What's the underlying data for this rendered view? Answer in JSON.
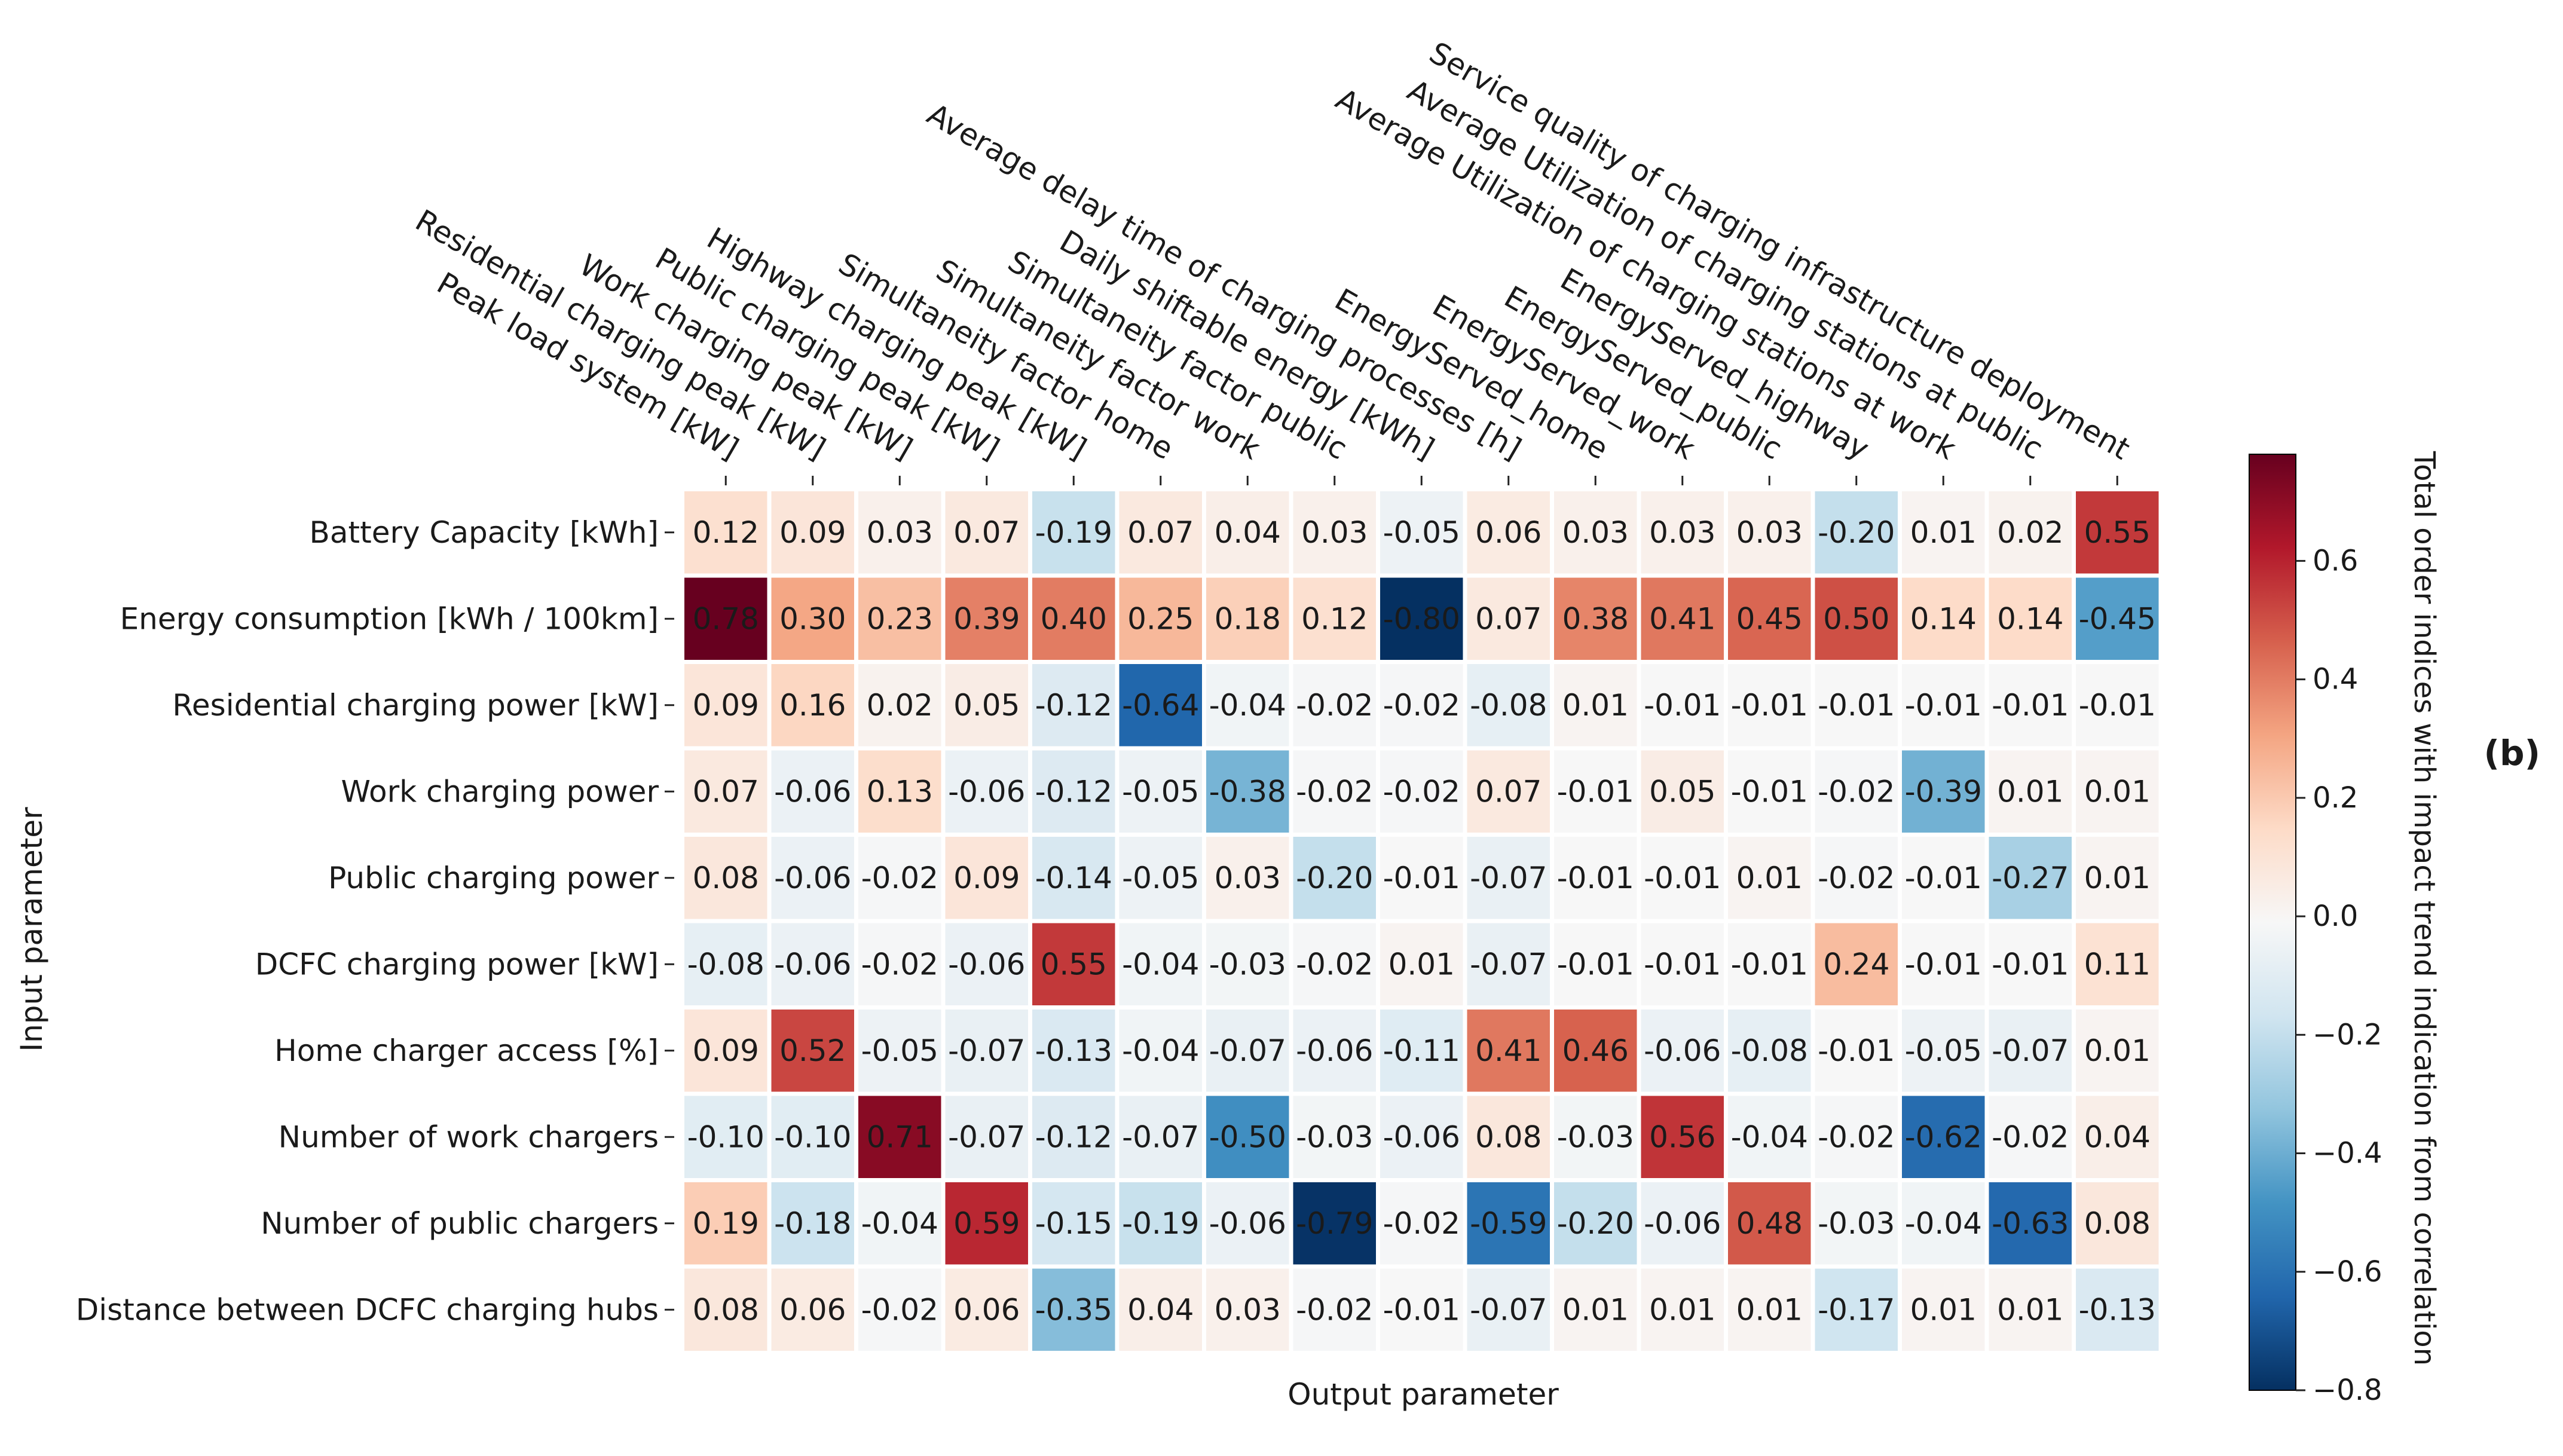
{
  "chart_data": {
    "type": "heatmap",
    "rows": [
      "Battery Capacity [kWh]",
      "Energy consumption [kWh / 100km]",
      "Residential charging power [kW]",
      "Work charging power",
      "Public charging power",
      "DCFC charging power [kW]",
      "Home charger access [%]",
      "Number of work chargers",
      "Number of public chargers",
      "Distance between DCFC charging hubs"
    ],
    "columns": [
      "Peak load system [kW]",
      "Residential charging peak [kW]",
      "Work charging peak [kW]",
      "Public charging peak [kW]",
      "Highway charging peak [kW]",
      "Simultaneity factor home",
      "Simultaneity factor work",
      "Simultaneity factor public",
      "Daily shiftable energy [kWh]",
      "Average delay time of charging processes [h]",
      "EnergyServed_home",
      "EnergyServed_work",
      "EnergyServed_public",
      "EnergyServed_highway",
      "Average Utilization of charging stations at work",
      "Average Utilization of charging stations at public",
      "Service quality of charging infrastructure deployment"
    ],
    "values": [
      [
        0.12,
        0.09,
        0.03,
        0.07,
        -0.19,
        0.07,
        0.04,
        0.03,
        -0.05,
        0.06,
        0.03,
        0.03,
        0.03,
        -0.2,
        0.01,
        0.02,
        0.55
      ],
      [
        0.78,
        0.3,
        0.23,
        0.39,
        0.4,
        0.25,
        0.18,
        0.12,
        -0.8,
        0.07,
        0.38,
        0.41,
        0.45,
        0.5,
        0.14,
        0.14,
        -0.45
      ],
      [
        0.09,
        0.16,
        0.02,
        0.05,
        -0.12,
        -0.64,
        -0.04,
        -0.02,
        -0.02,
        -0.08,
        0.01,
        -0.01,
        -0.01,
        -0.01,
        -0.01,
        -0.01,
        -0.01
      ],
      [
        0.07,
        -0.06,
        0.13,
        -0.06,
        -0.12,
        -0.05,
        -0.38,
        -0.02,
        -0.02,
        0.07,
        -0.01,
        0.05,
        -0.01,
        -0.02,
        -0.39,
        0.01,
        0.01
      ],
      [
        0.08,
        -0.06,
        -0.02,
        0.09,
        -0.14,
        -0.05,
        0.03,
        -0.2,
        -0.01,
        -0.07,
        -0.01,
        -0.01,
        0.01,
        -0.02,
        -0.01,
        -0.27,
        0.01
      ],
      [
        -0.08,
        -0.06,
        -0.02,
        -0.06,
        0.55,
        -0.04,
        -0.03,
        -0.02,
        0.01,
        -0.07,
        -0.01,
        -0.01,
        -0.01,
        0.24,
        -0.01,
        -0.01,
        0.11
      ],
      [
        0.09,
        0.52,
        -0.05,
        -0.07,
        -0.13,
        -0.04,
        -0.07,
        -0.06,
        -0.11,
        0.41,
        0.46,
        -0.06,
        -0.08,
        -0.01,
        -0.05,
        -0.07,
        0.01
      ],
      [
        -0.1,
        -0.1,
        0.71,
        -0.07,
        -0.12,
        -0.07,
        -0.5,
        -0.03,
        -0.06,
        0.08,
        -0.03,
        0.56,
        -0.04,
        -0.02,
        -0.62,
        -0.02,
        0.04
      ],
      [
        0.19,
        -0.18,
        -0.04,
        0.59,
        -0.15,
        -0.19,
        -0.06,
        -0.79,
        -0.02,
        -0.59,
        -0.2,
        -0.06,
        0.48,
        -0.03,
        -0.04,
        -0.63,
        0.08
      ],
      [
        0.08,
        0.06,
        -0.02,
        0.06,
        -0.35,
        0.04,
        0.03,
        -0.02,
        -0.01,
        -0.07,
        0.01,
        0.01,
        0.01,
        -0.17,
        0.01,
        0.01,
        -0.13
      ]
    ],
    "xlabel": "Output parameter",
    "ylabel": "Input parameter",
    "colorbar": {
      "label": "Total order indices with impact trend indication from correlation",
      "range": [
        -0.8,
        0.78
      ],
      "ticks": [
        0.6,
        0.4,
        0.2,
        0.0,
        -0.2,
        -0.4,
        -0.6,
        -0.8
      ],
      "tick_labels": [
        "0.6",
        "0.4",
        "0.2",
        "0.0",
        "−0.2",
        "−0.4",
        "−0.6",
        "−0.8"
      ],
      "colormap": "RdBu_r"
    },
    "panel_label": "(b)"
  }
}
